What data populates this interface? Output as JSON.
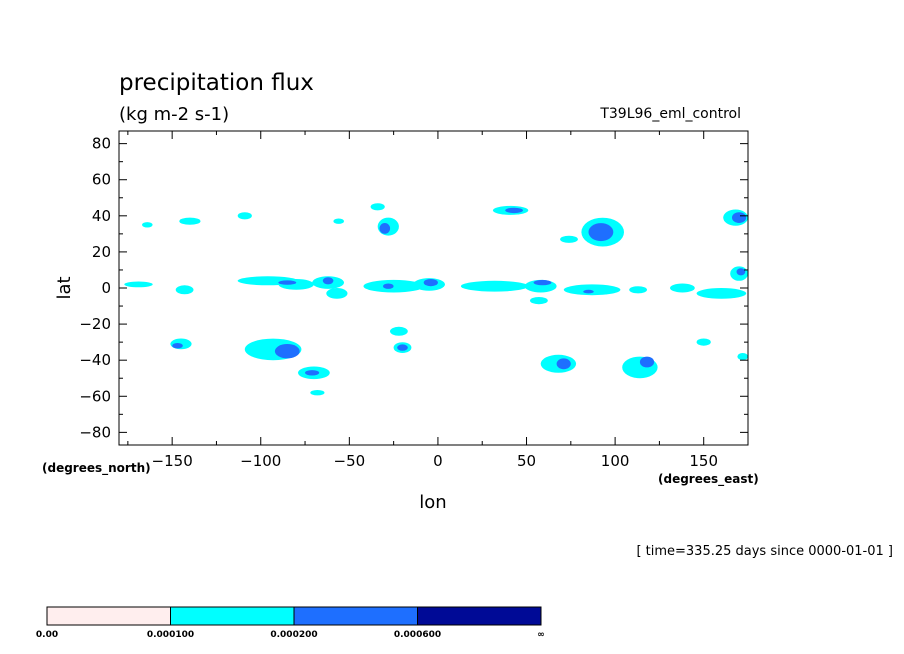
{
  "chart_data": {
    "type": "heatmap",
    "title": "precipitation flux",
    "units": "(kg m-2 s-1)",
    "run_name": "T39L96_eml_control",
    "xlabel": "lon",
    "ylabel": "lat",
    "x_units": "(degrees_east)",
    "y_units": "(degrees_north)",
    "xlim": [
      -180,
      175
    ],
    "ylim": [
      -87,
      87
    ],
    "xticks": [
      -150,
      -100,
      -50,
      0,
      50,
      100,
      150
    ],
    "yticks": [
      80,
      60,
      40,
      20,
      0,
      -20,
      -40,
      -60,
      -80
    ],
    "time_note": "[ time=335.25 days since 0000-01-01 ]",
    "colorbar": {
      "levels": [
        "0.00",
        "0.000100",
        "0.000200",
        "0.000600",
        "∞"
      ],
      "colors": [
        "#ffeeee",
        "#00ffff",
        "#1e6fff",
        "#000a96"
      ]
    },
    "contours": [
      {
        "level": 1,
        "lon": -169,
        "lat": 2,
        "rlon": 8,
        "rlat": 1.6
      },
      {
        "level": 1,
        "lon": -143,
        "lat": -1,
        "rlon": 5,
        "rlat": 2.5
      },
      {
        "level": 1,
        "lon": -96,
        "lat": 4,
        "rlon": 17,
        "rlat": 2.5
      },
      {
        "level": 1,
        "lon": -80,
        "lat": 2,
        "rlon": 10,
        "rlat": 3
      },
      {
        "level": 1,
        "lon": -62,
        "lat": 3,
        "rlon": 9,
        "rlat": 3.5
      },
      {
        "level": 1,
        "lon": -57,
        "lat": -3,
        "rlon": 6,
        "rlat": 3
      },
      {
        "level": 1,
        "lon": -25,
        "lat": 1,
        "rlon": 17,
        "rlat": 3.5
      },
      {
        "level": 1,
        "lon": -5,
        "lat": 2,
        "rlon": 9,
        "rlat": 3.5
      },
      {
        "level": 1,
        "lon": 32,
        "lat": 1,
        "rlon": 19,
        "rlat": 3
      },
      {
        "level": 1,
        "lon": 58,
        "lat": 1,
        "rlon": 9,
        "rlat": 3.5
      },
      {
        "level": 1,
        "lon": 57,
        "lat": -7,
        "rlon": 5,
        "rlat": 2
      },
      {
        "level": 1,
        "lon": 87,
        "lat": -1,
        "rlon": 16,
        "rlat": 3
      },
      {
        "level": 1,
        "lon": 113,
        "lat": -1,
        "rlon": 5,
        "rlat": 2
      },
      {
        "level": 1,
        "lon": 138,
        "lat": 0,
        "rlon": 7,
        "rlat": 2.5
      },
      {
        "level": 1,
        "lon": 160,
        "lat": -3,
        "rlon": 14,
        "rlat": 3
      },
      {
        "level": 1,
        "lon": 170,
        "lat": 8,
        "rlon": 5,
        "rlat": 4
      },
      {
        "level": 1,
        "lon": -164,
        "lat": 35,
        "rlon": 3,
        "rlat": 1.5
      },
      {
        "level": 1,
        "lon": -140,
        "lat": 37,
        "rlon": 6,
        "rlat": 2
      },
      {
        "level": 1,
        "lon": -109,
        "lat": 40,
        "rlon": 4,
        "rlat": 2
      },
      {
        "level": 1,
        "lon": -56,
        "lat": 37,
        "rlon": 3,
        "rlat": 1.5
      },
      {
        "level": 1,
        "lon": -34,
        "lat": 45,
        "rlon": 4,
        "rlat": 2
      },
      {
        "level": 1,
        "lon": -28,
        "lat": 34,
        "rlon": 6,
        "rlat": 5
      },
      {
        "level": 1,
        "lon": 41,
        "lat": 43,
        "rlon": 10,
        "rlat": 2.5
      },
      {
        "level": 1,
        "lon": 93,
        "lat": 31,
        "rlon": 12,
        "rlat": 8
      },
      {
        "level": 1,
        "lon": 74,
        "lat": 27,
        "rlon": 5,
        "rlat": 2
      },
      {
        "level": 1,
        "lon": 168,
        "lat": 39,
        "rlon": 7,
        "rlat": 4.5
      },
      {
        "level": 1,
        "lon": -145,
        "lat": -31,
        "rlon": 6,
        "rlat": 3
      },
      {
        "level": 1,
        "lon": -93,
        "lat": -34,
        "rlon": 16,
        "rlat": 6
      },
      {
        "level": 1,
        "lon": -70,
        "lat": -47,
        "rlon": 9,
        "rlat": 3.5
      },
      {
        "level": 1,
        "lon": -68,
        "lat": -58,
        "rlon": 4,
        "rlat": 1.5
      },
      {
        "level": 1,
        "lon": -22,
        "lat": -24,
        "rlon": 5,
        "rlat": 2.5
      },
      {
        "level": 1,
        "lon": -20,
        "lat": -33,
        "rlon": 5,
        "rlat": 3
      },
      {
        "level": 1,
        "lon": 68,
        "lat": -42,
        "rlon": 10,
        "rlat": 5
      },
      {
        "level": 1,
        "lon": 114,
        "lat": -44,
        "rlon": 10,
        "rlat": 6
      },
      {
        "level": 1,
        "lon": 150,
        "lat": -30,
        "rlon": 4,
        "rlat": 2
      },
      {
        "level": 1,
        "lon": 172,
        "lat": -38,
        "rlon": 3,
        "rlat": 2
      },
      {
        "level": 2,
        "lon": -85,
        "lat": 3,
        "rlon": 5,
        "rlat": 1.2
      },
      {
        "level": 2,
        "lon": -62,
        "lat": 4,
        "rlon": 3,
        "rlat": 2
      },
      {
        "level": 2,
        "lon": -28,
        "lat": 1,
        "rlon": 3,
        "rlat": 1.5
      },
      {
        "level": 2,
        "lon": -4,
        "lat": 3,
        "rlon": 4,
        "rlat": 2
      },
      {
        "level": 2,
        "lon": 59,
        "lat": 3,
        "rlon": 5,
        "rlat": 1.5
      },
      {
        "level": 2,
        "lon": 85,
        "lat": -2,
        "rlon": 3,
        "rlat": 1
      },
      {
        "level": 2,
        "lon": 171,
        "lat": 9,
        "rlon": 2.5,
        "rlat": 2
      },
      {
        "level": 2,
        "lon": -30,
        "lat": 33,
        "rlon": 3,
        "rlat": 3
      },
      {
        "level": 2,
        "lon": 43,
        "lat": 43,
        "rlon": 5,
        "rlat": 1.5
      },
      {
        "level": 2,
        "lon": 92,
        "lat": 31,
        "rlon": 7,
        "rlat": 5
      },
      {
        "level": 2,
        "lon": 170,
        "lat": 39,
        "rlon": 4,
        "rlat": 3
      },
      {
        "level": 2,
        "lon": -147,
        "lat": -32,
        "rlon": 3,
        "rlat": 1.5
      },
      {
        "level": 2,
        "lon": -85,
        "lat": -35,
        "rlon": 7,
        "rlat": 4
      },
      {
        "level": 2,
        "lon": -71,
        "lat": -47,
        "rlon": 4,
        "rlat": 1.5
      },
      {
        "level": 2,
        "lon": -20,
        "lat": -33,
        "rlon": 3,
        "rlat": 1.8
      },
      {
        "level": 2,
        "lon": 71,
        "lat": -42,
        "rlon": 4,
        "rlat": 3
      },
      {
        "level": 2,
        "lon": 118,
        "lat": -41,
        "rlon": 4,
        "rlat": 3
      }
    ]
  }
}
